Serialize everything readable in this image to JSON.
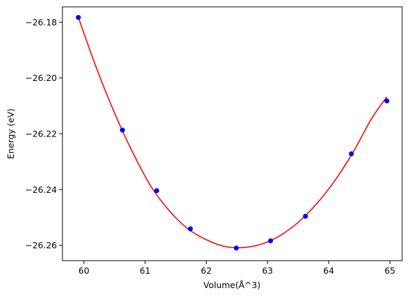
{
  "chart_data": {
    "type": "scatter",
    "title": "",
    "xlabel": "Volume(Å^3)",
    "ylabel": "Energy (eV)",
    "xlim": [
      59.65,
      65.2
    ],
    "ylim": [
      -26.2655,
      -26.1745
    ],
    "xticks": [
      60,
      61,
      62,
      63,
      64,
      65
    ],
    "xtick_labels": [
      "60",
      "61",
      "62",
      "63",
      "64",
      "65"
    ],
    "yticks": [
      -26.18,
      -26.2,
      -26.22,
      -26.24,
      -26.26
    ],
    "ytick_labels": [
      "−26.18",
      "−26.20",
      "−26.22",
      "−26.24",
      "−26.26"
    ],
    "grid": false,
    "series": [
      {
        "kind": "points",
        "color": "#0000ff",
        "x": [
          59.91,
          60.63,
          61.19,
          61.74,
          62.49,
          63.05,
          63.62,
          64.37,
          64.95
        ],
        "y": [
          -26.1783,
          -26.2187,
          -26.2404,
          -26.2541,
          -26.261,
          -26.2584,
          -26.2496,
          -26.2272,
          -26.2082
        ]
      },
      {
        "kind": "fit-curve",
        "color": "#ff0000",
        "x": [
          59.91,
          60.2,
          60.5,
          60.8,
          61.1,
          61.4,
          61.7,
          62.0,
          62.3,
          62.6,
          62.9,
          63.2,
          63.5,
          63.8,
          64.1,
          64.4,
          64.7,
          64.95
        ],
        "y": [
          -26.1783,
          -26.1961,
          -26.2125,
          -26.2268,
          -26.239,
          -26.2477,
          -26.2541,
          -26.258,
          -26.2604,
          -26.2608,
          -26.2596,
          -26.2566,
          -26.2518,
          -26.2452,
          -26.2368,
          -26.2266,
          -26.2146,
          -26.2068
        ]
      }
    ]
  }
}
